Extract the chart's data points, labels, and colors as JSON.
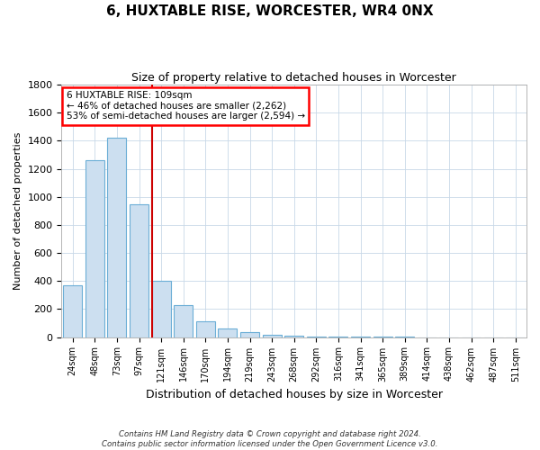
{
  "title": "6, HUXTABLE RISE, WORCESTER, WR4 0NX",
  "subtitle": "Size of property relative to detached houses in Worcester",
  "xlabel": "Distribution of detached houses by size in Worcester",
  "ylabel": "Number of detached properties",
  "bar_labels": [
    "24sqm",
    "48sqm",
    "73sqm",
    "97sqm",
    "121sqm",
    "146sqm",
    "170sqm",
    "194sqm",
    "219sqm",
    "243sqm",
    "268sqm",
    "292sqm",
    "316sqm",
    "341sqm",
    "365sqm",
    "389sqm",
    "414sqm",
    "438sqm",
    "462sqm",
    "487sqm",
    "511sqm"
  ],
  "bar_values": [
    370,
    1260,
    1420,
    950,
    400,
    230,
    110,
    60,
    35,
    15,
    8,
    5,
    3,
    2,
    2,
    1,
    0,
    0,
    0,
    0,
    0
  ],
  "bar_color": "#ccdff0",
  "bar_edge_color": "#6baed6",
  "property_line_x": 3.6,
  "annotation_text_line1": "6 HUXTABLE RISE: 109sqm",
  "annotation_text_line2": "← 46% of detached houses are smaller (2,262)",
  "annotation_text_line3": "53% of semi-detached houses are larger (2,594) →",
  "ylim": [
    0,
    1800
  ],
  "footnote1": "Contains HM Land Registry data © Crown copyright and database right 2024.",
  "footnote2": "Contains public sector information licensed under the Open Government Licence v3.0."
}
